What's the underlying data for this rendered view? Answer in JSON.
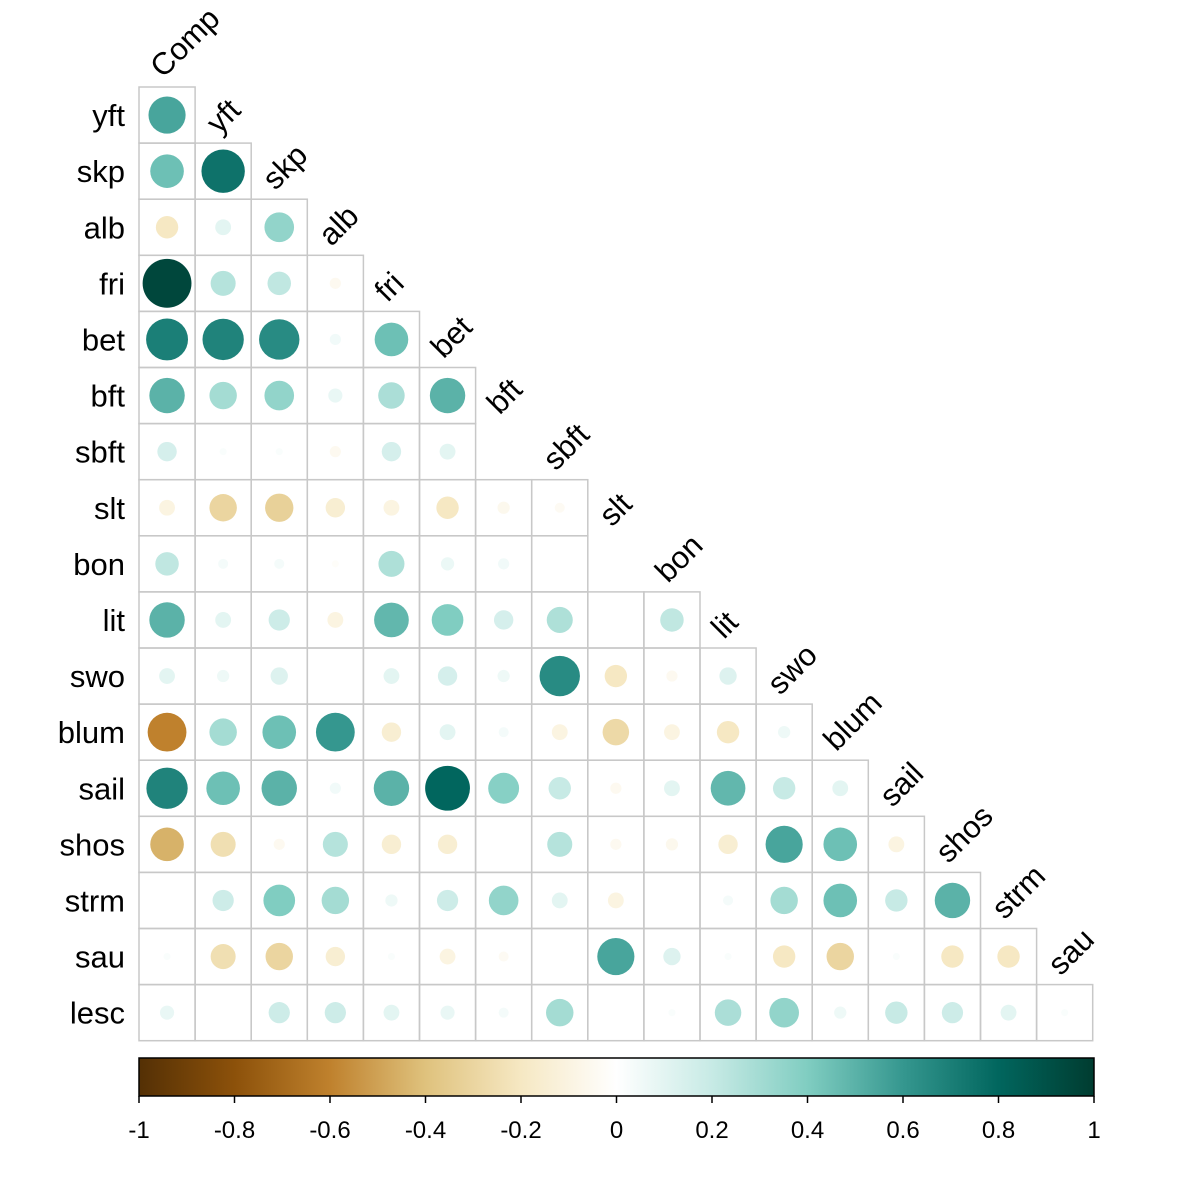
{
  "chart_data": {
    "type": "heatmap",
    "title": "",
    "xlabel": "",
    "ylabel": "",
    "columns": [
      "Comp",
      "yft",
      "skp",
      "alb",
      "fri",
      "bet",
      "bft",
      "sbft",
      "slt",
      "bon",
      "lit",
      "swo",
      "blum",
      "sail",
      "shos",
      "strm",
      "sau"
    ],
    "rows": [
      "yft",
      "skp",
      "alb",
      "fri",
      "bet",
      "bft",
      "sbft",
      "slt",
      "bon",
      "lit",
      "swo",
      "blum",
      "sail",
      "shos",
      "strm",
      "sau",
      "lesc"
    ],
    "values": [
      [
        0.55
      ],
      [
        0.45,
        0.75
      ],
      [
        -0.2,
        0.1,
        0.35
      ],
      [
        0.95,
        0.25,
        0.22,
        -0.05
      ],
      [
        0.7,
        0.68,
        0.65,
        0.05,
        0.45
      ],
      [
        0.5,
        0.3,
        0.35,
        0.08,
        0.28,
        0.5
      ],
      [
        0.15,
        0.02,
        0.02,
        -0.05,
        0.15,
        0.1
      ],
      [
        -0.1,
        -0.3,
        -0.32,
        -0.15,
        -0.1,
        -0.2,
        -0.06,
        -0.04
      ],
      [
        0.22,
        0.04,
        0.04,
        -0.02,
        0.27,
        0.07,
        0.05,
        0.0
      ],
      [
        0.5,
        0.1,
        0.18,
        -0.1,
        0.48,
        0.4,
        0.15,
        0.27,
        0.0,
        0.22
      ],
      [
        0.1,
        0.06,
        0.12,
        0.0,
        0.1,
        0.15,
        0.06,
        0.65,
        -0.2,
        -0.05,
        0.12
      ],
      [
        -0.6,
        0.3,
        0.45,
        0.6,
        -0.15,
        0.1,
        0.04,
        -0.1,
        -0.28,
        -0.1,
        -0.2,
        0.06
      ],
      [
        0.68,
        0.45,
        0.5,
        0.05,
        0.5,
        0.8,
        0.38,
        0.2,
        -0.05,
        0.1,
        0.48,
        0.2,
        0.1
      ],
      [
        -0.45,
        -0.25,
        -0.05,
        0.25,
        -0.15,
        -0.15,
        0.0,
        0.25,
        -0.05,
        -0.06,
        -0.15,
        0.55,
        0.45,
        -0.1
      ],
      [
        0.0,
        0.18,
        0.4,
        0.3,
        0.06,
        0.18,
        0.35,
        0.1,
        -0.1,
        0.0,
        0.04,
        0.3,
        0.45,
        0.2,
        0.5
      ],
      [
        0.02,
        -0.25,
        -0.3,
        -0.15,
        0.02,
        -0.1,
        -0.04,
        0.0,
        0.55,
        0.12,
        0.02,
        -0.2,
        -0.3,
        0.02,
        -0.2,
        -0.2
      ],
      [
        0.08,
        0.0,
        0.18,
        0.18,
        0.1,
        0.08,
        0.04,
        0.3,
        0.0,
        0.02,
        0.28,
        0.35,
        0.06,
        0.2,
        0.18,
        0.1,
        0.02
      ]
    ],
    "color_scale": {
      "min": -1,
      "max": 1,
      "ticks": [
        "-1",
        "-0.8",
        "-0.6",
        "-0.4",
        "-0.2",
        "0",
        "0.2",
        "0.4",
        "0.6",
        "0.8",
        "1"
      ],
      "palette": [
        "#543005",
        "#8C510A",
        "#BF812D",
        "#DFC27D",
        "#F6E8C3",
        "#FFFFFF",
        "#C7EAE5",
        "#80CDC1",
        "#35978F",
        "#01665E",
        "#003C30"
      ]
    },
    "legend": "bottom",
    "layout": "lower-triangle",
    "grid": true
  }
}
